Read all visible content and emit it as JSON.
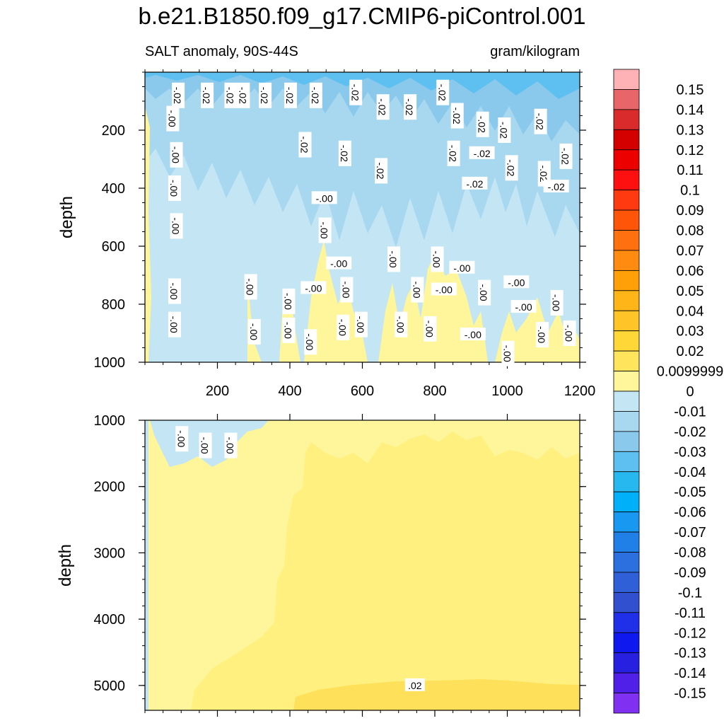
{
  "chart_data": {
    "type": "contour",
    "title": "b.e21.B1850.f09_g17.CMIP6-piControl.001",
    "subtitle_left": "SALT anomaly, 90S-44S",
    "subtitle_right": "gram/kilogram",
    "panels": [
      {
        "name": "upper",
        "ylabel": "depth",
        "xlim": [
          0,
          1200
        ],
        "ylim": [
          1000,
          0
        ],
        "xticks": [
          "200",
          "400",
          "600",
          "800",
          "1000",
          "1200"
        ],
        "yticks": [
          "200",
          "400",
          "600",
          "800",
          "1000"
        ],
        "contour_labels": [
          "-.02",
          "-.00"
        ]
      },
      {
        "name": "lower",
        "ylabel": "depth",
        "xlim": [
          0,
          1200
        ],
        "ylim": [
          5375,
          1000
        ],
        "yticks": [
          "1000",
          "2000",
          "3000",
          "4000",
          "5000"
        ],
        "contour_labels": [
          ".02",
          "-.00"
        ]
      }
    ],
    "colorbar": {
      "labels": [
        "0.15",
        "0.14",
        "0.13",
        "0.12",
        "0.11",
        "0.1",
        "0.09",
        "0.08",
        "0.07",
        "0.06",
        "0.05",
        "0.04",
        "0.03",
        "0.02",
        "0.0099999",
        "0",
        "-0.01",
        "-0.02",
        "-0.03",
        "-0.04",
        "-0.05",
        "-0.06",
        "-0.07",
        "-0.08",
        "-0.09",
        "-0.1",
        "-0.11",
        "-0.12",
        "-0.13",
        "-0.14",
        "-0.15"
      ],
      "colors": [
        "#ffb2b5",
        "#e8666a",
        "#d92b2b",
        "#d40000",
        "#ec0000",
        "#ff1010",
        "#ff3a10",
        "#ff5508",
        "#ff7010",
        "#ff8c10",
        "#ffa008",
        "#ffb418",
        "#ffc428",
        "#ffd838",
        "#ffe45c",
        "#fff59a",
        "#c4e6f4",
        "#a8d8f0",
        "#8ac8ec",
        "#5ec0f0",
        "#28b8f0",
        "#00b0f8",
        "#1898f0",
        "#2080e8",
        "#2c70e0",
        "#3060d8",
        "#3050d0",
        "#2030e8",
        "#1018f0",
        "#2820e0",
        "#5020e8",
        "#8030f0"
      ]
    }
  }
}
